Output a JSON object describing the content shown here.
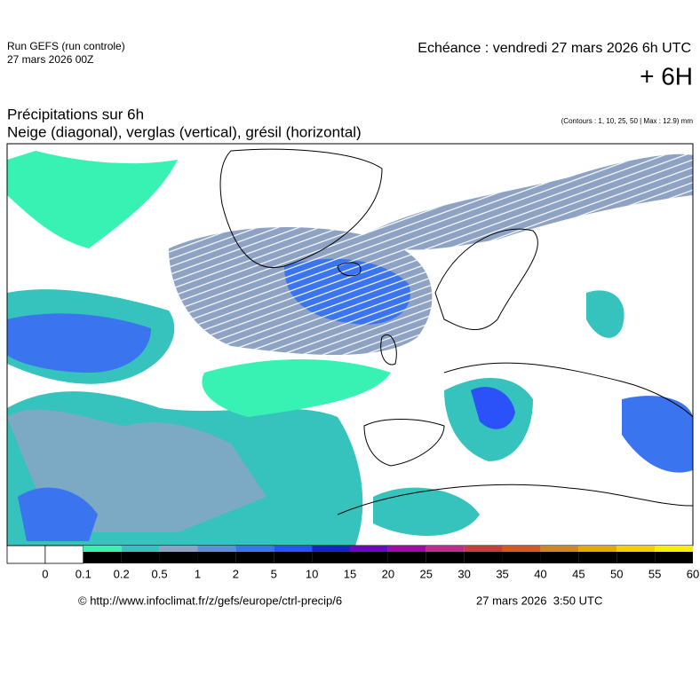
{
  "header": {
    "run": "Run GEFS (run controle)",
    "run_date": "27 mars 2026 00Z",
    "valid": "Echéance : vendredi 27 mars 2026 6h UTC",
    "lead": "+ 6H"
  },
  "title": {
    "line1": "Précipitations sur 6h",
    "line2": "Neige (diagonal), verglas (vertical), grésil (horizontal)",
    "contours": "(Contours : 1, 10, 25, 50 | Max : 12.9) mm"
  },
  "colorbar": {
    "labels": [
      "0",
      "0.1",
      "0.2",
      "0.5",
      "1",
      "2",
      "5",
      "10",
      "15",
      "20",
      "25",
      "30",
      "35",
      "40",
      "45",
      "50",
      "55",
      "60"
    ],
    "colors": [
      "#ffffff",
      "#ffffff",
      "#38f2b4",
      "#36c3bd",
      "#8ea2c4",
      "#5f8ede",
      "#3a74ee",
      "#2a52f8",
      "#1424c8",
      "#6a08c6",
      "#a406b0",
      "#c42a8c",
      "#cc3c3c",
      "#d8581e",
      "#cc8a1a",
      "#e0ac00",
      "#f2d000",
      "#f6f000"
    ]
  },
  "footer": {
    "url": "© http://www.infoclimat.fr/z/gefs/europe/ctrl-precip/6",
    "timestamp": "27 mars 2026  3:50 UTC"
  }
}
